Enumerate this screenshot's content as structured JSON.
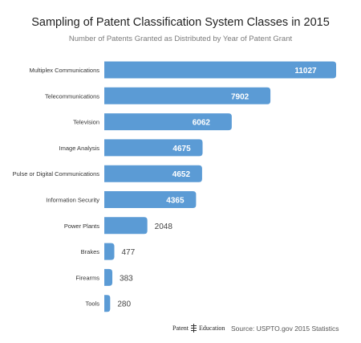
{
  "chart_data": {
    "type": "bar",
    "orientation": "horizontal",
    "title": "Sampling of Patent Classification System Classes in 2015",
    "subtitle": "Number of Patents Granted as Distributed by Year of Patent Grant",
    "categories": [
      "Multiplex Communications",
      "Telecommunications",
      "Television",
      "Image Analysis",
      "Pulse or Digital Communications",
      "Information Security",
      "Power Plants",
      "Brakes",
      "Firearms",
      "Tools"
    ],
    "values": [
      11027,
      7902,
      6062,
      4675,
      4652,
      4365,
      2048,
      477,
      383,
      280
    ],
    "xlim": [
      0,
      11027
    ],
    "grid": false,
    "legend": "none",
    "bar_color": "#5b9bd5"
  },
  "footer": {
    "logo_text_1": "Patent",
    "logo_text_2": "Education",
    "source": "Source: USPTO.gov 2015 Statistics"
  }
}
